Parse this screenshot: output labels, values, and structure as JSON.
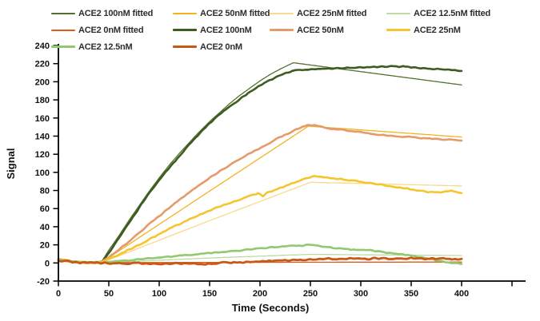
{
  "chart_data": {
    "type": "line",
    "title": "",
    "xlabel": "Time (Seconds)",
    "ylabel": "Signal",
    "xlim": [
      0,
      460
    ],
    "ylim": [
      -20,
      240
    ],
    "grid": false,
    "x_ticks": [
      0,
      50,
      100,
      150,
      200,
      250,
      300,
      350,
      400
    ],
    "x_ticks_unlabeled": [
      450
    ],
    "y_ticks": [
      -20,
      0,
      20,
      40,
      60,
      80,
      100,
      120,
      140,
      160,
      180,
      200,
      220,
      240
    ],
    "legend": {
      "position": "top",
      "columns": 4,
      "order": [
        "ace2-100nm-fitted",
        "ace2-50nm-fitted",
        "ace2-25nm-fitted",
        "ace2-12nm-fitted",
        "ace2-0nm-fitted",
        "ace2-100nm",
        "ace2-50nm",
        "ace2-25nm",
        "ace2-12nm",
        "ace2-0nm"
      ]
    },
    "series": [
      {
        "id": "ace2-100nm-fitted",
        "label": "ACE2 100nM fitted",
        "role": "fitted",
        "color": "#52702E",
        "width": 1.3,
        "noise": 0,
        "points": [
          [
            42,
            0
          ],
          [
            50,
            14
          ],
          [
            60,
            30
          ],
          [
            70,
            47
          ],
          [
            80,
            63
          ],
          [
            90,
            79
          ],
          [
            100,
            94
          ],
          [
            110,
            108
          ],
          [
            120,
            121
          ],
          [
            130,
            133
          ],
          [
            140,
            145
          ],
          [
            150,
            156
          ],
          [
            160,
            166
          ],
          [
            170,
            176
          ],
          [
            180,
            185
          ],
          [
            190,
            193
          ],
          [
            200,
            201
          ],
          [
            210,
            208
          ],
          [
            220,
            214
          ],
          [
            233,
            221
          ],
          [
            400,
            196.5
          ]
        ]
      },
      {
        "id": "ace2-50nm-fitted",
        "label": "ACE2 50nM fitted",
        "role": "fitted",
        "color": "#F2B31E",
        "width": 1.3,
        "noise": 0,
        "points": [
          [
            42,
            0
          ],
          [
            140,
            72
          ],
          [
            248,
            151
          ],
          [
            400,
            139
          ]
        ]
      },
      {
        "id": "ace2-25nm-fitted",
        "label": "ACE2 25nM fitted",
        "role": "fitted",
        "color": "#F8DA8C",
        "width": 1.3,
        "noise": 0,
        "points": [
          [
            42,
            0
          ],
          [
            146,
            45
          ],
          [
            250,
            89
          ],
          [
            310,
            87.5
          ],
          [
            400,
            85
          ]
        ]
      },
      {
        "id": "ace2-12nm-fitted",
        "label": "ACE2 12.5nM fitted",
        "role": "fitted",
        "color": "#BCDCA4",
        "width": 1.3,
        "noise": 0,
        "points": [
          [
            42,
            0
          ],
          [
            100,
            3
          ],
          [
            150,
            5.5
          ],
          [
            200,
            7.5
          ],
          [
            250,
            9.5
          ],
          [
            300,
            9
          ],
          [
            350,
            8.6
          ],
          [
            400,
            8.2
          ]
        ]
      },
      {
        "id": "ace2-0nm-fitted",
        "label": "ACE2 0nM fitted",
        "role": "fitted",
        "color": "#E05A1E",
        "width": 1.3,
        "noise": 0,
        "points": [
          [
            42,
            0.3
          ],
          [
            120,
            0.5
          ],
          [
            240,
            0.8
          ],
          [
            400,
            1
          ]
        ]
      },
      {
        "id": "ace2-100nm",
        "label": "ACE2 100nM",
        "role": "data",
        "color": "#3E5C20",
        "width": 2.6,
        "noise": 0.8,
        "points": [
          [
            0,
            4
          ],
          [
            8,
            2.5
          ],
          [
            16,
            1.5
          ],
          [
            24,
            1
          ],
          [
            32,
            0.5
          ],
          [
            40,
            0.5
          ],
          [
            44,
            2
          ],
          [
            52,
            14
          ],
          [
            60,
            27
          ],
          [
            70,
            44
          ],
          [
            80,
            61
          ],
          [
            90,
            77
          ],
          [
            100,
            91
          ],
          [
            110,
            105
          ],
          [
            120,
            118
          ],
          [
            130,
            131
          ],
          [
            140,
            143
          ],
          [
            150,
            154
          ],
          [
            160,
            164
          ],
          [
            170,
            173
          ],
          [
            180,
            181
          ],
          [
            190,
            189
          ],
          [
            200,
            196
          ],
          [
            210,
            202
          ],
          [
            220,
            207
          ],
          [
            228,
            210
          ],
          [
            236,
            213
          ],
          [
            248,
            213.5
          ],
          [
            260,
            214
          ],
          [
            272,
            214.5
          ],
          [
            284,
            215
          ],
          [
            296,
            215.5
          ],
          [
            308,
            216
          ],
          [
            320,
            216.5
          ],
          [
            332,
            217
          ],
          [
            344,
            216.5
          ],
          [
            356,
            215.5
          ],
          [
            368,
            214.5
          ],
          [
            380,
            213.5
          ],
          [
            392,
            213
          ],
          [
            400,
            212
          ]
        ]
      },
      {
        "id": "ace2-50nm",
        "label": "ACE2 50nM",
        "role": "data",
        "color": "#E69A6A",
        "width": 2.6,
        "noise": 0.8,
        "points": [
          [
            0,
            3
          ],
          [
            8,
            2
          ],
          [
            16,
            1
          ],
          [
            24,
            0.5
          ],
          [
            32,
            0
          ],
          [
            40,
            0
          ],
          [
            44,
            1.5
          ],
          [
            52,
            8
          ],
          [
            60,
            15
          ],
          [
            70,
            24
          ],
          [
            80,
            33
          ],
          [
            90,
            43
          ],
          [
            100,
            52
          ],
          [
            110,
            61
          ],
          [
            120,
            70
          ],
          [
            130,
            78
          ],
          [
            140,
            86
          ],
          [
            150,
            94
          ],
          [
            160,
            101
          ],
          [
            170,
            108
          ],
          [
            180,
            115
          ],
          [
            190,
            121
          ],
          [
            200,
            127
          ],
          [
            210,
            133
          ],
          [
            220,
            139
          ],
          [
            230,
            144
          ],
          [
            240,
            149
          ],
          [
            247,
            152.5
          ],
          [
            254,
            152
          ],
          [
            262,
            150
          ],
          [
            270,
            148.5
          ],
          [
            280,
            147
          ],
          [
            290,
            145.5
          ],
          [
            300,
            144
          ],
          [
            312,
            142.5
          ],
          [
            324,
            141
          ],
          [
            336,
            140
          ],
          [
            348,
            139
          ],
          [
            360,
            138
          ],
          [
            372,
            137
          ],
          [
            384,
            136.5
          ],
          [
            396,
            135.5
          ],
          [
            400,
            135
          ]
        ]
      },
      {
        "id": "ace2-25nm",
        "label": "ACE2 25nM",
        "role": "data",
        "color": "#F6C52D",
        "width": 2.6,
        "noise": 0.8,
        "points": [
          [
            0,
            5
          ],
          [
            8,
            3
          ],
          [
            16,
            1.5
          ],
          [
            24,
            0.5
          ],
          [
            32,
            0
          ],
          [
            40,
            0.5
          ],
          [
            44,
            1.5
          ],
          [
            52,
            5
          ],
          [
            60,
            9
          ],
          [
            70,
            15
          ],
          [
            80,
            20
          ],
          [
            90,
            26
          ],
          [
            100,
            32
          ],
          [
            110,
            38
          ],
          [
            120,
            43
          ],
          [
            130,
            48
          ],
          [
            140,
            53
          ],
          [
            150,
            58
          ],
          [
            160,
            62
          ],
          [
            170,
            66
          ],
          [
            180,
            70
          ],
          [
            190,
            74
          ],
          [
            198,
            77
          ],
          [
            203,
            73.5
          ],
          [
            207,
            78
          ],
          [
            215,
            81
          ],
          [
            225,
            85
          ],
          [
            235,
            89
          ],
          [
            245,
            93
          ],
          [
            252,
            96
          ],
          [
            260,
            95
          ],
          [
            270,
            94
          ],
          [
            280,
            92.5
          ],
          [
            290,
            91
          ],
          [
            300,
            89.5
          ],
          [
            310,
            88
          ],
          [
            320,
            86.5
          ],
          [
            330,
            84.5
          ],
          [
            340,
            83
          ],
          [
            350,
            81.5
          ],
          [
            358,
            80
          ],
          [
            366,
            78.5
          ],
          [
            374,
            77.5
          ],
          [
            382,
            78.5
          ],
          [
            390,
            80
          ],
          [
            395,
            78.5
          ],
          [
            400,
            77
          ]
        ]
      },
      {
        "id": "ace2-12nm",
        "label": "ACE2 12.5nM",
        "role": "data",
        "color": "#90C96F",
        "width": 2.6,
        "noise": 0.7,
        "points": [
          [
            0,
            4
          ],
          [
            10,
            2
          ],
          [
            20,
            1
          ],
          [
            30,
            1
          ],
          [
            40,
            0.5
          ],
          [
            50,
            1
          ],
          [
            60,
            2
          ],
          [
            70,
            3
          ],
          [
            80,
            4
          ],
          [
            90,
            5
          ],
          [
            100,
            6
          ],
          [
            110,
            7
          ],
          [
            120,
            8
          ],
          [
            130,
            9
          ],
          [
            140,
            10
          ],
          [
            150,
            11
          ],
          [
            160,
            12
          ],
          [
            170,
            13
          ],
          [
            180,
            14
          ],
          [
            190,
            15
          ],
          [
            200,
            16
          ],
          [
            210,
            17
          ],
          [
            220,
            18
          ],
          [
            230,
            19
          ],
          [
            240,
            19
          ],
          [
            250,
            20
          ],
          [
            258,
            19
          ],
          [
            265,
            18
          ],
          [
            272,
            17
          ],
          [
            280,
            16
          ],
          [
            290,
            15
          ],
          [
            300,
            14
          ],
          [
            308,
            14
          ],
          [
            315,
            13
          ],
          [
            322,
            12
          ],
          [
            330,
            11
          ],
          [
            340,
            10
          ],
          [
            350,
            8
          ],
          [
            360,
            6
          ],
          [
            370,
            4
          ],
          [
            380,
            2
          ],
          [
            390,
            0
          ],
          [
            400,
            -1
          ]
        ]
      },
      {
        "id": "ace2-0nm",
        "label": "ACE2 0nM",
        "role": "data",
        "color": "#C95817",
        "width": 2.8,
        "noise": 1.1,
        "points": [
          [
            0,
            3
          ],
          [
            10,
            2
          ],
          [
            20,
            1
          ],
          [
            30,
            0
          ],
          [
            40,
            0
          ],
          [
            50,
            0
          ],
          [
            60,
            0
          ],
          [
            70,
            -0.5
          ],
          [
            80,
            -0.5
          ],
          [
            90,
            -1
          ],
          [
            100,
            -1
          ],
          [
            110,
            -0.5
          ],
          [
            120,
            -1
          ],
          [
            130,
            -0.5
          ],
          [
            140,
            -1
          ],
          [
            150,
            -0.5
          ],
          [
            160,
            0
          ],
          [
            170,
            0.5
          ],
          [
            180,
            1
          ],
          [
            190,
            1.5
          ],
          [
            200,
            2
          ],
          [
            210,
            2.5
          ],
          [
            220,
            3
          ],
          [
            230,
            3
          ],
          [
            240,
            3.5
          ],
          [
            250,
            4
          ],
          [
            260,
            4
          ],
          [
            270,
            4.5
          ],
          [
            280,
            4.5
          ],
          [
            290,
            4.5
          ],
          [
            300,
            5
          ],
          [
            310,
            4.5
          ],
          [
            320,
            5
          ],
          [
            330,
            5
          ],
          [
            340,
            5
          ],
          [
            350,
            5
          ],
          [
            360,
            4.5
          ],
          [
            370,
            5
          ],
          [
            380,
            5
          ],
          [
            390,
            4.5
          ],
          [
            400,
            4.5
          ]
        ]
      }
    ]
  }
}
